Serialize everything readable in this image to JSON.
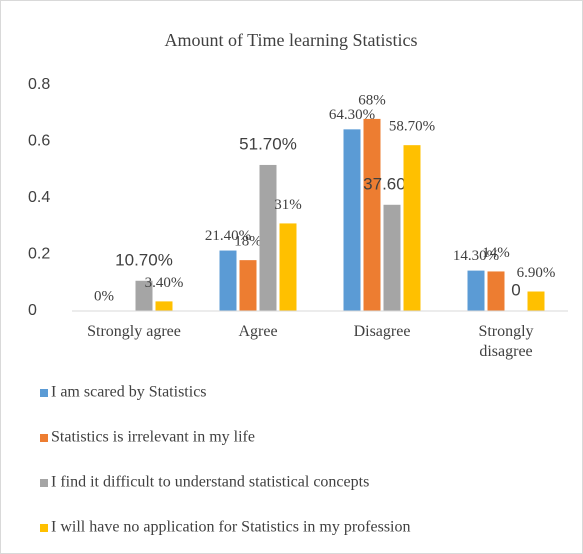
{
  "chart_data": {
    "type": "bar",
    "title": "Amount of Time learning Statistics",
    "categories": [
      "Strongly agree",
      "Agree",
      "Disagree",
      "Strongly disagree"
    ],
    "series": [
      {
        "name": "I am scared by Statistics",
        "color": "#5b9bd5",
        "values": [
          0,
          0.214,
          0.643,
          0.143
        ],
        "value_labels": [
          "0%",
          "21.40%",
          "64.30%",
          "14.30%"
        ]
      },
      {
        "name": "Statistics is irrelevant in my life",
        "color": "#ed7d31",
        "values": [
          0,
          0.18,
          0.68,
          0.14
        ],
        "value_labels": [
          null,
          "18%",
          "68%",
          "14%"
        ]
      },
      {
        "name": "I find it difficult to understand statistical concepts",
        "color": "#a5a5a5",
        "values": [
          0.107,
          0.517,
          0.376,
          0
        ],
        "value_labels": [
          "10.70%",
          "51.70%",
          "37.60%",
          "0"
        ]
      },
      {
        "name": "I will have no application for Statistics in my profession",
        "color": "#ffc000",
        "values": [
          0.034,
          0.31,
          0.587,
          0.069
        ],
        "value_labels": [
          "3.40%",
          "31%",
          "58.70%",
          "6.90%"
        ]
      }
    ],
    "ylim": [
      0,
      0.8
    ],
    "yticks": [
      0,
      0.2,
      0.4,
      0.6,
      0.8
    ],
    "grid": false
  }
}
